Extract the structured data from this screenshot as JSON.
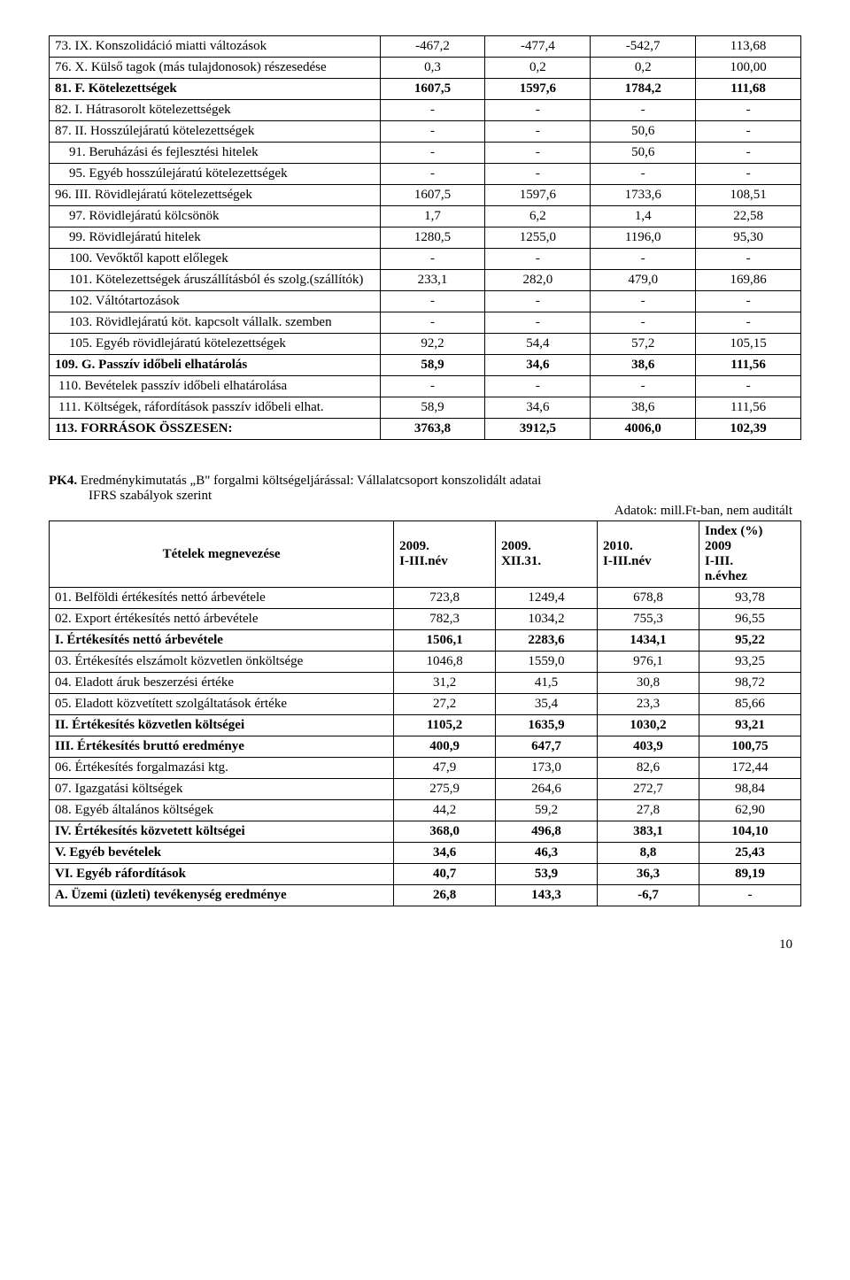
{
  "table1": {
    "rows": [
      {
        "label": "73. IX. Konszolidáció miatti változások",
        "c2": "-467,2",
        "c3": "-477,4",
        "c4": "-542,7",
        "c5": "113,68",
        "indent": "",
        "bold": false,
        "c5top": true
      },
      {
        "label": "76. X. Külső tagok (más tulajdonosok) részesedése",
        "c2": "0,3",
        "c3": "0,2",
        "c4": "0,2",
        "c5": "100,00",
        "indent": "",
        "bold": false,
        "c5top": true
      },
      {
        "label": "81. F. Kötelezettségek",
        "c2": "1607,5",
        "c3": "1597,6",
        "c4": "1784,2",
        "c5": "111,68",
        "indent": "",
        "bold": true,
        "c5top": true
      },
      {
        "label": "82. I. Hátrasorolt kötelezettségek",
        "c2": "-",
        "c3": "-",
        "c4": "-",
        "c5": "-",
        "indent": "",
        "bold": false
      },
      {
        "label": "87. II. Hosszúlejáratú kötelezettségek",
        "c2": "-",
        "c3": "-",
        "c4": "50,6",
        "c5": "-",
        "indent": "",
        "bold": false
      },
      {
        "label": "91. Beruházási és fejlesztési hitelek",
        "c2": "-",
        "c3": "-",
        "c4": "50,6",
        "c5": "-",
        "indent": "ind1",
        "bold": false
      },
      {
        "label": "95. Egyéb hosszúlejáratú kötelezettségek",
        "c2": "-",
        "c3": "-",
        "c4": "-",
        "c5": "-",
        "indent": "ind1",
        "bold": false
      },
      {
        "label": "96. III. Rövidlejáratú kötelezettségek",
        "c2": "1607,5",
        "c3": "1597,6",
        "c4": "1733,6",
        "c5": "108,51",
        "indent": "",
        "bold": false
      },
      {
        "label": "97. Rövidlejáratú kölcsönök",
        "c2": "1,7",
        "c3": "6,2",
        "c4": "1,4",
        "c5": "22,58",
        "indent": "ind1",
        "bold": false
      },
      {
        "label": "99. Rövidlejáratú hitelek",
        "c2": "1280,5",
        "c3": "1255,0",
        "c4": "1196,0",
        "c5": "95,30",
        "indent": "ind1",
        "bold": false
      },
      {
        "label": "100. Vevőktől kapott előlegek",
        "c2": "-",
        "c3": "-",
        "c4": "-",
        "c5": "-",
        "indent": "ind1",
        "bold": false
      },
      {
        "label": "101. Kötelezettségek áruszállításból és szolg.(szállítók)",
        "c2": "233,1",
        "c3": "282,0",
        "c4": "479,0",
        "c5": "169,86",
        "indent": "ind1",
        "bold": false,
        "topalign": true
      },
      {
        "label": "102. Váltótartozások",
        "c2": "-",
        "c3": "-",
        "c4": "-",
        "c5": "-",
        "indent": "ind1",
        "bold": false
      },
      {
        "label": "103. Rövidlejáratú köt. kapcsolt vállalk. szemben",
        "c2": "-",
        "c3": "-",
        "c4": "-",
        "c5": "-",
        "indent": "ind1",
        "bold": false
      },
      {
        "label": "105. Egyéb rövidlejáratú kötelezettségek",
        "c2": "92,2",
        "c3": "54,4",
        "c4": "57,2",
        "c5": "105,15",
        "indent": "ind1",
        "bold": false,
        "c5top": true
      },
      {
        "label": "109. G. Passzív időbeli elhatárolás",
        "c2": "58,9",
        "c3": "34,6",
        "c4": "38,6",
        "c5": "111,56",
        "indent": "",
        "bold": true,
        "c5top": true
      },
      {
        "label": "110. Bevételek passzív időbeli elhatárolása",
        "c2": "-",
        "c3": "-",
        "c4": "-",
        "c5": "-",
        "indent": "ind2",
        "bold": false,
        "c5top": true
      },
      {
        "label": "111. Költségek, ráfordítások passzív időbeli elhat.",
        "c2": "58,9",
        "c3": "34,6",
        "c4": "38,6",
        "c5": "111,56",
        "indent": "ind2",
        "bold": false,
        "c5top": true
      },
      {
        "label": "113. FORRÁSOK ÖSSZESEN:",
        "c2": "3763,8",
        "c3": "3912,5",
        "c4": "4006,0",
        "c5": "102,39",
        "indent": "",
        "bold": true,
        "c5top": true
      }
    ]
  },
  "pk4": {
    "line1_bold": "PK4.",
    "line1_rest": "Eredménykimutatás „B\" forgalmi költségeljárással: Vállalatcsoport konszolidált adatai",
    "line2": "IFRS szabályok szerint",
    "line3": "Adatok: mill.Ft-ban, nem auditált"
  },
  "table2": {
    "header": {
      "h1": "Tételek megnevezése",
      "h2": "2009. I-III.név",
      "h3": "2009. XII.31.",
      "h4": "2010. I-III.név",
      "h5": "Index (%) 2009 I-III. n.évhez"
    },
    "rows": [
      {
        "label": "01. Belföldi értékesítés nettó árbevétele",
        "c2": "723,8",
        "c3": "1249,4",
        "c4": "678,8",
        "c5": "93,78",
        "bold": false
      },
      {
        "label": "02. Export értékesítés nettó árbevétele",
        "c2": "782,3",
        "c3": "1034,2",
        "c4": "755,3",
        "c5": "96,55",
        "bold": false
      },
      {
        "label": "I. Értékesítés nettó árbevétele",
        "c2": "1506,1",
        "c3": "2283,6",
        "c4": "1434,1",
        "c5": "95,22",
        "bold": true
      },
      {
        "label": "03. Értékesítés elszámolt közvetlen önköltsége",
        "c2": "1046,8",
        "c3": "1559,0",
        "c4": "976,1",
        "c5": "93,25",
        "bold": false
      },
      {
        "label": "04. Eladott áruk beszerzési értéke",
        "c2": "31,2",
        "c3": "41,5",
        "c4": "30,8",
        "c5": "98,72",
        "bold": false
      },
      {
        "label": "05. Eladott közvetített szolgáltatások értéke",
        "c2": "27,2",
        "c3": "35,4",
        "c4": "23,3",
        "c5": "85,66",
        "bold": false
      },
      {
        "label": "II. Értékesítés közvetlen költségei",
        "c2": "1105,2",
        "c3": "1635,9",
        "c4": "1030,2",
        "c5": "93,21",
        "bold": true
      },
      {
        "label": "III. Értékesítés bruttó eredménye",
        "c2": "400,9",
        "c3": "647,7",
        "c4": "403,9",
        "c5": "100,75",
        "bold": true
      },
      {
        "label": "06. Értékesítés forgalmazási ktg.",
        "c2": "47,9",
        "c3": "173,0",
        "c4": "82,6",
        "c5": "172,44",
        "bold": false
      },
      {
        "label": "07. Igazgatási költségek",
        "c2": "275,9",
        "c3": "264,6",
        "c4": "272,7",
        "c5": "98,84",
        "bold": false
      },
      {
        "label": "08. Egyéb általános költségek",
        "c2": "44,2",
        "c3": "59,2",
        "c4": "27,8",
        "c5": "62,90",
        "bold": false
      },
      {
        "label": "IV. Értékesítés közvetett költségei",
        "c2": "368,0",
        "c3": "496,8",
        "c4": "383,1",
        "c5": "104,10",
        "bold": true
      },
      {
        "label": "V. Egyéb bevételek",
        "c2": "34,6",
        "c3": "46,3",
        "c4": "8,8",
        "c5": "25,43",
        "bold": true
      },
      {
        "label": "VI. Egyéb ráfordítások",
        "c2": "40,7",
        "c3": "53,9",
        "c4": "36,3",
        "c5": "89,19",
        "bold": true
      },
      {
        "label": "A. Üzemi (üzleti) tevékenység eredménye",
        "c2": "26,8",
        "c3": "143,3",
        "c4": "-6,7",
        "c5": "-",
        "bold": true
      }
    ]
  },
  "pagenum": "10"
}
